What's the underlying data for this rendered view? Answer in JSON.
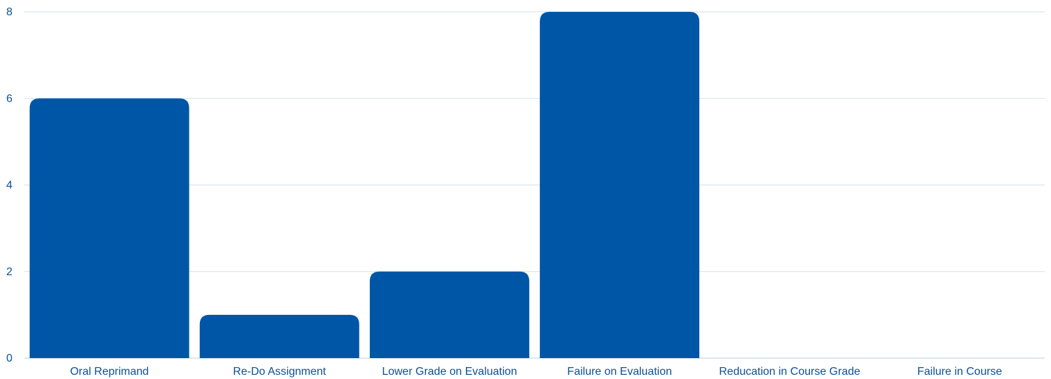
{
  "chart_data": {
    "type": "bar",
    "categories": [
      "Oral Reprimand",
      "Re-Do Assignment",
      "Lower Grade on Evaluation",
      "Failure on Evaluation",
      "Reducation in Course Grade",
      "Failure in Course"
    ],
    "values": [
      6,
      1,
      2,
      8,
      0,
      0
    ],
    "yticks": [
      "0",
      "2",
      "4",
      "6",
      "8"
    ],
    "ylim": [
      0,
      8
    ],
    "grid": true,
    "legend": "none",
    "title": "",
    "xlabel": "",
    "ylabel": "",
    "bar_color": "#0056a6",
    "grid_color": "#cfe0ee",
    "label_color": "#0b4f95"
  }
}
